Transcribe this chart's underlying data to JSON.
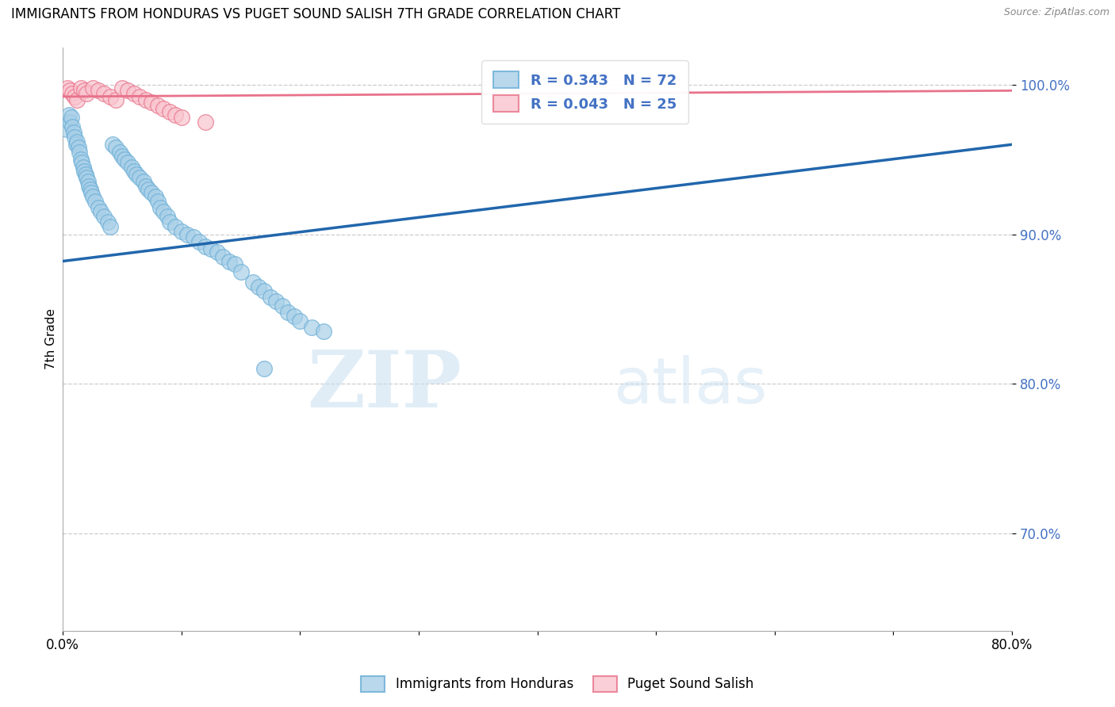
{
  "title": "IMMIGRANTS FROM HONDURAS VS PUGET SOUND SALISH 7TH GRADE CORRELATION CHART",
  "source": "Source: ZipAtlas.com",
  "ylabel": "7th Grade",
  "xlim": [
    0.0,
    0.8
  ],
  "ylim": [
    0.635,
    1.025
  ],
  "yticks": [
    0.7,
    0.8,
    0.9,
    1.0
  ],
  "ytick_labels": [
    "70.0%",
    "80.0%",
    "90.0%",
    "100.0%"
  ],
  "xticks": [
    0.0,
    0.1,
    0.2,
    0.3,
    0.4,
    0.5,
    0.6,
    0.7,
    0.8
  ],
  "xtick_labels": [
    "0.0%",
    "",
    "",
    "",
    "",
    "",
    "",
    "",
    "80.0%"
  ],
  "blue_color": "#a8cfe8",
  "blue_edge_color": "#6aaed6",
  "pink_color": "#f9c4ce",
  "pink_edge_color": "#e8728a",
  "blue_line_color": "#2166ac",
  "pink_line_color": "#e8728a",
  "legend_blue_label": "Immigrants from Honduras",
  "legend_pink_label": "Puget Sound Salish",
  "R_blue": "0.343",
  "N_blue": "72",
  "R_pink": "0.043",
  "N_pink": "25",
  "blue_scatter_x": [
    0.003,
    0.005,
    0.006,
    0.007,
    0.008,
    0.009,
    0.01,
    0.011,
    0.012,
    0.013,
    0.014,
    0.015,
    0.016,
    0.017,
    0.018,
    0.019,
    0.02,
    0.021,
    0.022,
    0.023,
    0.024,
    0.025,
    0.027,
    0.03,
    0.032,
    0.035,
    0.038,
    0.04,
    0.042,
    0.045,
    0.048,
    0.05,
    0.052,
    0.055,
    0.058,
    0.06,
    0.062,
    0.065,
    0.068,
    0.07,
    0.072,
    0.075,
    0.078,
    0.08,
    0.082,
    0.085,
    0.088,
    0.09,
    0.095,
    0.1,
    0.105,
    0.11,
    0.115,
    0.12,
    0.125,
    0.13,
    0.135,
    0.14,
    0.145,
    0.15,
    0.16,
    0.165,
    0.17,
    0.175,
    0.18,
    0.185,
    0.19,
    0.195,
    0.2,
    0.21,
    0.22,
    0.17
  ],
  "blue_scatter_y": [
    0.97,
    0.98,
    0.975,
    0.978,
    0.972,
    0.968,
    0.965,
    0.96,
    0.962,
    0.958,
    0.955,
    0.95,
    0.948,
    0.945,
    0.942,
    0.94,
    0.938,
    0.935,
    0.932,
    0.93,
    0.928,
    0.925,
    0.922,
    0.918,
    0.915,
    0.912,
    0.908,
    0.905,
    0.96,
    0.958,
    0.955,
    0.952,
    0.95,
    0.948,
    0.945,
    0.942,
    0.94,
    0.938,
    0.935,
    0.932,
    0.93,
    0.928,
    0.925,
    0.922,
    0.918,
    0.915,
    0.912,
    0.908,
    0.905,
    0.902,
    0.9,
    0.898,
    0.895,
    0.892,
    0.89,
    0.888,
    0.885,
    0.882,
    0.88,
    0.875,
    0.868,
    0.865,
    0.862,
    0.858,
    0.855,
    0.852,
    0.848,
    0.845,
    0.842,
    0.838,
    0.835,
    0.81
  ],
  "pink_scatter_x": [
    0.004,
    0.006,
    0.008,
    0.01,
    0.012,
    0.015,
    0.018,
    0.02,
    0.025,
    0.03,
    0.035,
    0.04,
    0.045,
    0.05,
    0.055,
    0.06,
    0.065,
    0.07,
    0.075,
    0.08,
    0.085,
    0.09,
    0.095,
    0.1,
    0.12
  ],
  "pink_scatter_y": [
    0.998,
    0.996,
    0.994,
    0.992,
    0.99,
    0.998,
    0.996,
    0.994,
    0.998,
    0.996,
    0.994,
    0.992,
    0.99,
    0.998,
    0.996,
    0.994,
    0.992,
    0.99,
    0.988,
    0.986,
    0.984,
    0.982,
    0.98,
    0.978,
    0.975
  ],
  "watermark_zip": "ZIP",
  "watermark_atlas": "atlas",
  "blue_line_x0": 0.0,
  "blue_line_x1": 0.8,
  "blue_line_y0": 0.882,
  "blue_line_y1": 0.96,
  "pink_line_x0": 0.0,
  "pink_line_x1": 0.8,
  "pink_line_y0": 0.992,
  "pink_line_y1": 0.996
}
